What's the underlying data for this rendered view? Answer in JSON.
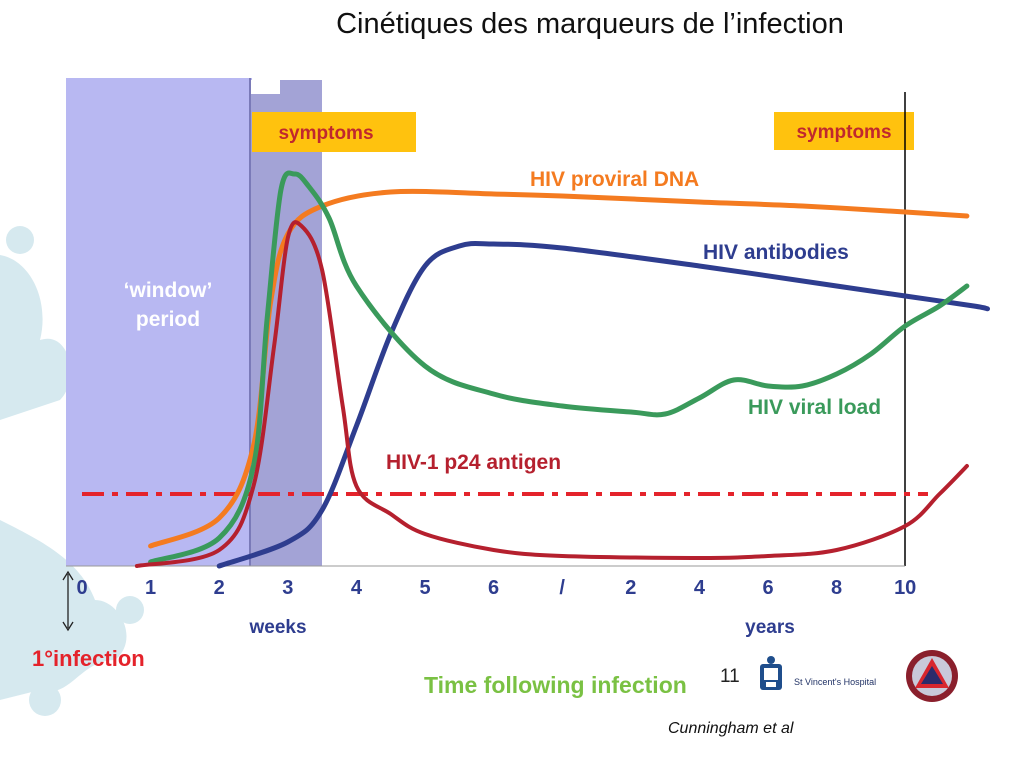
{
  "slide": {
    "title": "Cinétiques des marqueurs de l’infection",
    "slide_number": "11",
    "hospital_name": "St Vincent's Hospital",
    "citation": "Cunningham et al"
  },
  "chart_data": {
    "type": "line",
    "x_axis": {
      "tick_labels": [
        "0",
        "1",
        "2",
        "3",
        "4",
        "5",
        "6",
        "/",
        "2",
        "4",
        "6",
        "8",
        "10"
      ],
      "units": [
        "weeks",
        "years"
      ],
      "title": "Time following infection"
    },
    "regions": {
      "window_period": {
        "label_lines": [
          "‘window’",
          "period"
        ],
        "x_start": 0,
        "x_end": 2.5
      },
      "acute_band": {
        "x_start": 2.5,
        "x_end": 3.5
      }
    },
    "symptom_labels": [
      "symptoms",
      "symptoms"
    ],
    "infection_label": "1°infection",
    "threshold_line": {
      "style": "dash-dot",
      "color": "#e4232b"
    },
    "series": [
      {
        "name": "HIV proviral DNA",
        "color": "#f47b20",
        "points": [
          [
            1,
            0.05
          ],
          [
            2,
            0.12
          ],
          [
            2.5,
            0.3
          ],
          [
            2.75,
            0.66
          ],
          [
            3,
            0.83
          ],
          [
            3.5,
            0.9
          ],
          [
            4.5,
            0.935
          ],
          [
            6,
            0.93
          ],
          [
            7,
            0.925
          ],
          [
            9,
            0.91
          ],
          [
            10.5,
            0.9
          ],
          [
            12,
            0.885
          ],
          [
            12.9,
            0.875
          ]
        ]
      },
      {
        "name": "HIV antibodies",
        "color": "#2e3d8f",
        "points": [
          [
            2,
            0.0
          ],
          [
            3,
            0.06
          ],
          [
            3.5,
            0.14
          ],
          [
            4,
            0.35
          ],
          [
            4.5,
            0.58
          ],
          [
            5,
            0.75
          ],
          [
            5.5,
            0.8
          ],
          [
            6,
            0.805
          ],
          [
            7,
            0.795
          ],
          [
            9,
            0.75
          ],
          [
            11,
            0.7
          ],
          [
            12,
            0.675
          ],
          [
            13,
            0.65
          ],
          [
            13.2,
            0.643
          ]
        ]
      },
      {
        "name": "HIV viral load",
        "color": "#3a9a5b",
        "points": [
          [
            1,
            0.01
          ],
          [
            2,
            0.07
          ],
          [
            2.5,
            0.25
          ],
          [
            2.7,
            0.62
          ],
          [
            2.9,
            0.94
          ],
          [
            3.1,
            0.98
          ],
          [
            3.3,
            0.95
          ],
          [
            3.6,
            0.87
          ],
          [
            4,
            0.7
          ],
          [
            5,
            0.5
          ],
          [
            6,
            0.43
          ],
          [
            7,
            0.4
          ],
          [
            8,
            0.385
          ],
          [
            8.5,
            0.38
          ],
          [
            9,
            0.42
          ],
          [
            9.5,
            0.465
          ],
          [
            10,
            0.45
          ],
          [
            10.5,
            0.45
          ],
          [
            11,
            0.48
          ],
          [
            11.5,
            0.53
          ],
          [
            12,
            0.6
          ],
          [
            12.5,
            0.65
          ],
          [
            12.9,
            0.7
          ]
        ]
      },
      {
        "name": "HIV-1 p24 antigen",
        "color": "#b5202e",
        "points": [
          [
            0.8,
            0.0
          ],
          [
            2,
            0.04
          ],
          [
            2.5,
            0.2
          ],
          [
            2.8,
            0.55
          ],
          [
            3,
            0.82
          ],
          [
            3.2,
            0.85
          ],
          [
            3.5,
            0.74
          ],
          [
            3.8,
            0.4
          ],
          [
            4,
            0.2
          ],
          [
            4.5,
            0.13
          ],
          [
            5,
            0.08
          ],
          [
            6,
            0.04
          ],
          [
            7,
            0.025
          ],
          [
            9,
            0.02
          ],
          [
            10,
            0.025
          ],
          [
            11,
            0.04
          ],
          [
            12,
            0.1
          ],
          [
            12.5,
            0.18
          ],
          [
            12.9,
            0.25
          ]
        ]
      }
    ]
  }
}
